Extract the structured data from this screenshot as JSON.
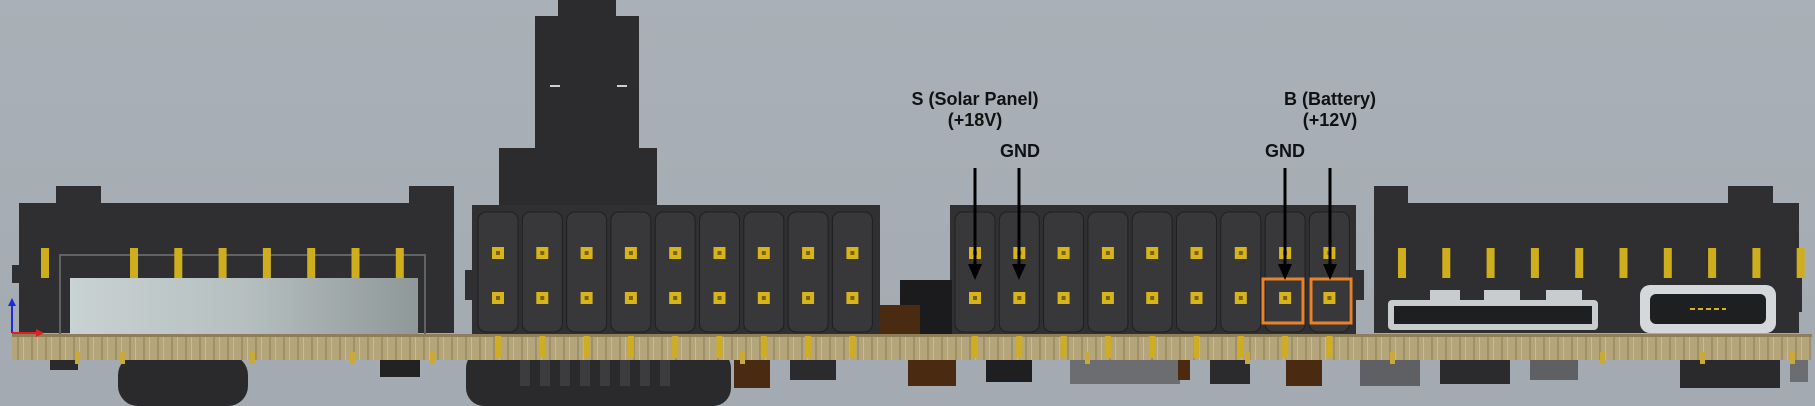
{
  "labels": {
    "solar_title": "S (Solar Panel)",
    "solar_voltage": "(+18V)",
    "gnd_solar": "GND",
    "gnd_battery": "GND",
    "battery_title": "B (Battery)",
    "battery_voltage": "(+12V)"
  },
  "colors": {
    "background": "#a6adb4",
    "connector_body": "#2f2f31",
    "pin_gold": "#d8b41c",
    "highlight": "#e8832a",
    "pcb": "#b8a77a",
    "arrow": "#000000"
  }
}
